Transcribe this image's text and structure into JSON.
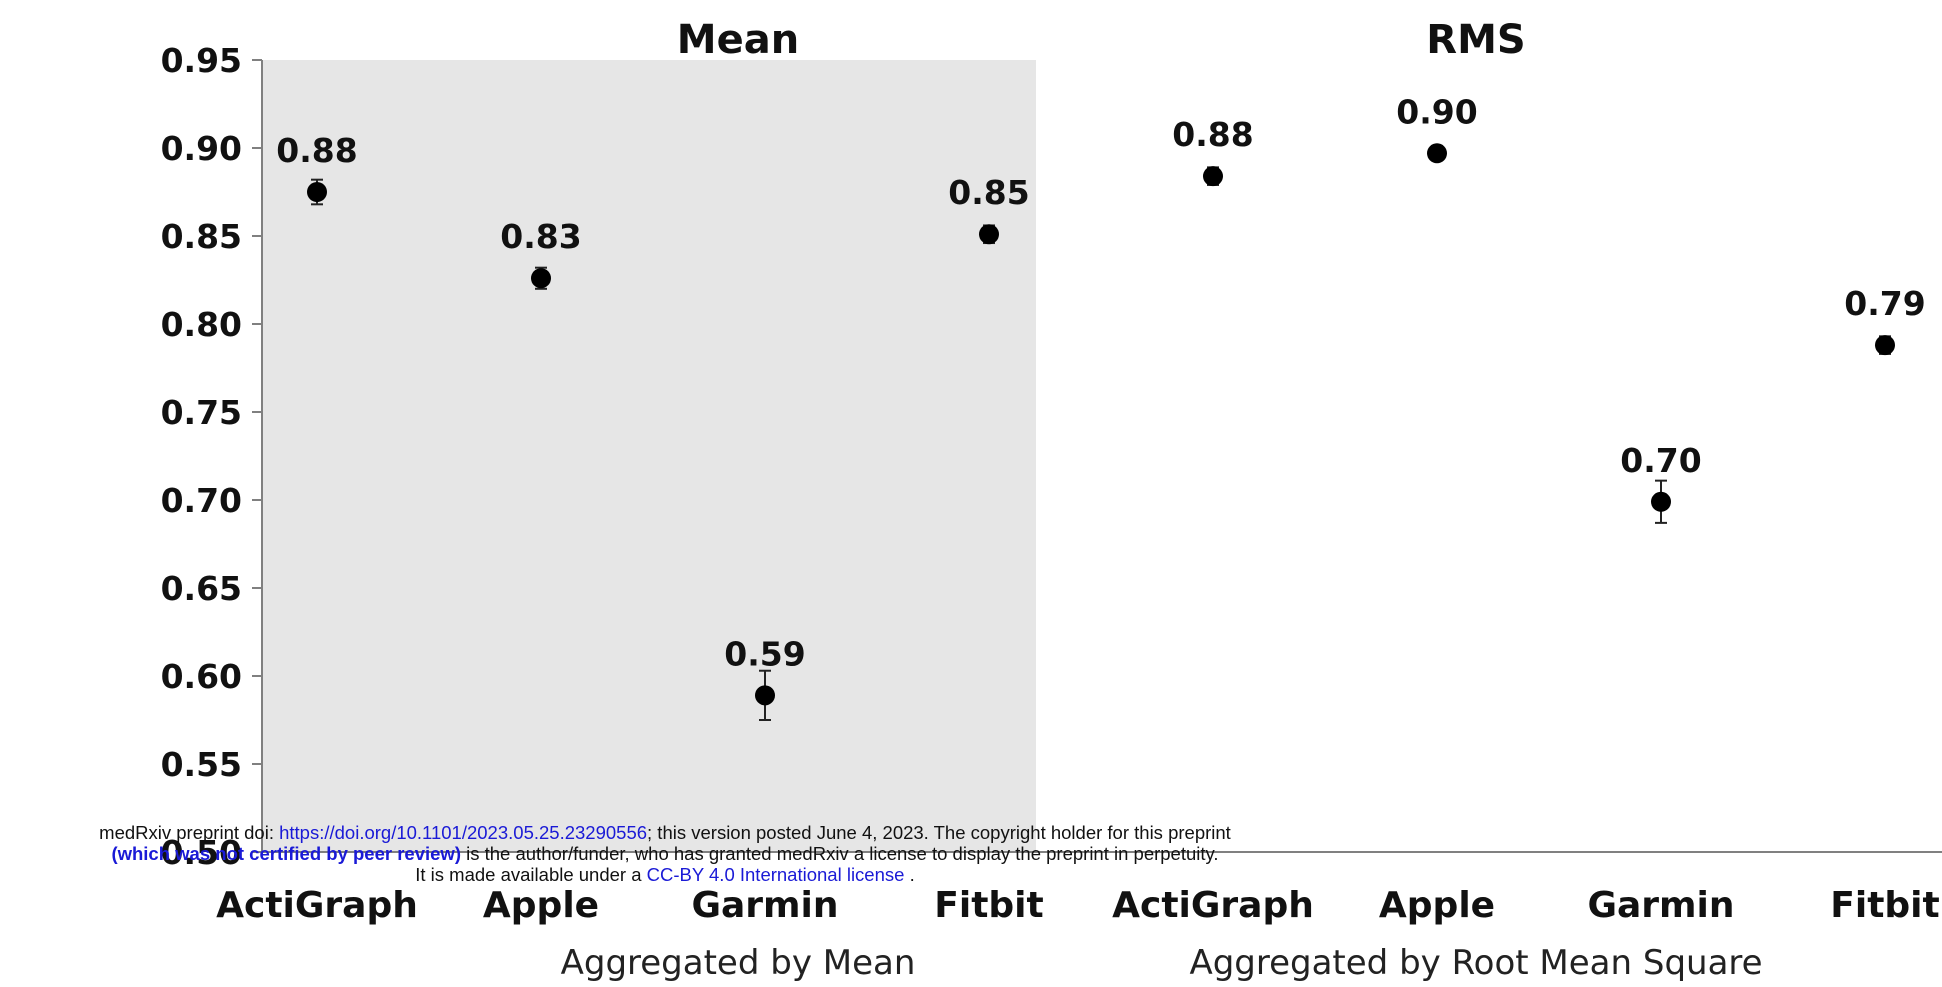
{
  "chart_data": {
    "type": "scatter",
    "ylim": [
      0.5,
      0.95
    ],
    "yticks": [
      "0.50",
      "0.55",
      "0.60",
      "0.65",
      "0.70",
      "0.75",
      "0.80",
      "0.85",
      "0.90",
      "0.95"
    ],
    "grid": false,
    "legend": "none",
    "panels": [
      {
        "title": "Mean",
        "group_label": "Aggregated by Mean",
        "shaded": true,
        "categories": [
          "ActiGraph",
          "Apple",
          "Garmin",
          "Fitbit"
        ],
        "values": [
          0.875,
          0.826,
          0.589,
          0.851
        ],
        "error": [
          0.007,
          0.006,
          0.014,
          0.005
        ],
        "labels": [
          "0.88",
          "0.83",
          "0.59",
          "0.85"
        ]
      },
      {
        "title": "RMS",
        "group_label": "Aggregated by Root Mean Square",
        "shaded": false,
        "categories": [
          "ActiGraph",
          "Apple",
          "Garmin",
          "Fitbit"
        ],
        "values": [
          0.884,
          0.897,
          0.699,
          0.788
        ],
        "error": [
          0.005,
          0.004,
          0.012,
          0.005
        ],
        "labels": [
          "0.88",
          "0.90",
          "0.70",
          "0.79"
        ]
      }
    ],
    "colors": {
      "marker": "#000000",
      "shade": "#e6e6e6",
      "axis": "#808080"
    }
  },
  "notice": {
    "line1_pre": "medRxiv preprint doi: ",
    "line1_link": "https://doi.org/10.1101/2023.05.25.23290556",
    "line1_post": "; this version posted June 4, 2023. The copyright holder for this preprint",
    "line2_bold": "(which was not certified by peer review)",
    "line2_post": " is the author/funder, who has granted medRxiv a license to display the preprint in perpetuity.",
    "line3_pre": "It is made available under a ",
    "line3_link": "CC-BY 4.0 International license",
    "line3_post": " ."
  }
}
